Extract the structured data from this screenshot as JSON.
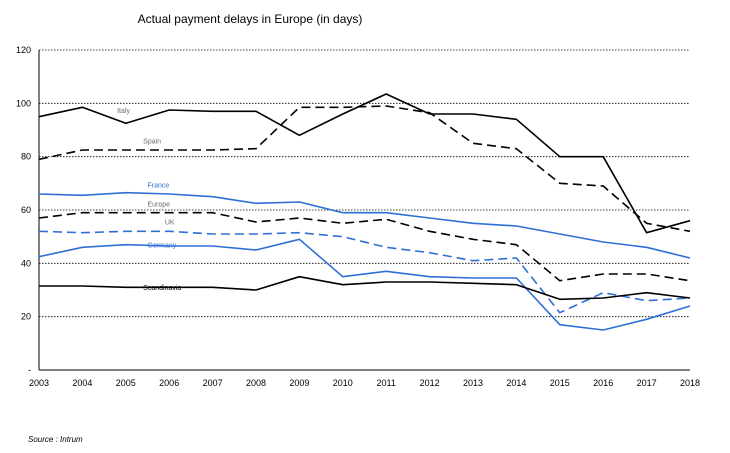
{
  "chart_data": {
    "type": "line",
    "title": "Actual payment delays in Europe (in days)",
    "source": "Source : Intrum",
    "xlabel": "",
    "ylabel": "",
    "x": [
      "2003",
      "2004",
      "2005",
      "2006",
      "2007",
      "2008",
      "2009",
      "2010",
      "2011",
      "2012",
      "2013",
      "2014",
      "2015",
      "2016",
      "2017",
      "2018"
    ],
    "ylim": [
      0,
      120
    ],
    "yticks": [
      0,
      20,
      40,
      60,
      80,
      100,
      120
    ],
    "ytick_labels": [
      "-",
      "20",
      "40",
      "60",
      "80",
      "100",
      "120"
    ],
    "grid": "horizontal-dotted",
    "legend": "inline labels",
    "series": [
      {
        "name": "Italy",
        "color": "#000000",
        "dash": "solid",
        "values": [
          95,
          98.5,
          92.5,
          97.5,
          97,
          97,
          88,
          96,
          103.5,
          96,
          96,
          94,
          80,
          80,
          51.5,
          56
        ]
      },
      {
        "name": "Spain",
        "color": "#000000",
        "dash": "dashed",
        "values": [
          79,
          82.5,
          82.5,
          82.5,
          82.5,
          83,
          98.5,
          98.5,
          99,
          96.5,
          85,
          83,
          70,
          69,
          55,
          52
        ]
      },
      {
        "name": "France",
        "color": "#2E6FD6",
        "dash": "solid",
        "values": [
          66,
          65.5,
          66.5,
          66,
          65,
          62.5,
          63,
          59,
          59,
          57,
          55,
          54,
          51,
          48,
          46,
          42
        ]
      },
      {
        "name": "Europe",
        "color": "#000000",
        "dash": "dashed",
        "values": [
          57,
          59,
          59,
          59,
          59,
          55.5,
          57,
          55,
          56.5,
          52,
          49,
          47,
          33.5,
          36,
          36,
          33.5
        ]
      },
      {
        "name": "UK",
        "color": "#2E6FD6",
        "dash": "dashed",
        "values": [
          52,
          51.5,
          52,
          52,
          51,
          51,
          51.5,
          50,
          46,
          44,
          41,
          42,
          21.5,
          29,
          26,
          27
        ]
      },
      {
        "name": "Germany",
        "color": "#2E6FD6",
        "dash": "solid",
        "values": [
          42.5,
          46,
          47,
          46.5,
          46.5,
          45,
          49,
          35,
          37,
          35,
          34.5,
          34.5,
          17,
          15,
          19,
          24
        ]
      },
      {
        "name": "Scandinavia",
        "color": "#000000",
        "dash": "solid",
        "values": [
          31.5,
          31.5,
          31,
          31,
          31,
          30,
          35,
          32,
          33,
          33,
          32.5,
          32,
          26.5,
          27,
          29,
          27
        ]
      }
    ]
  }
}
